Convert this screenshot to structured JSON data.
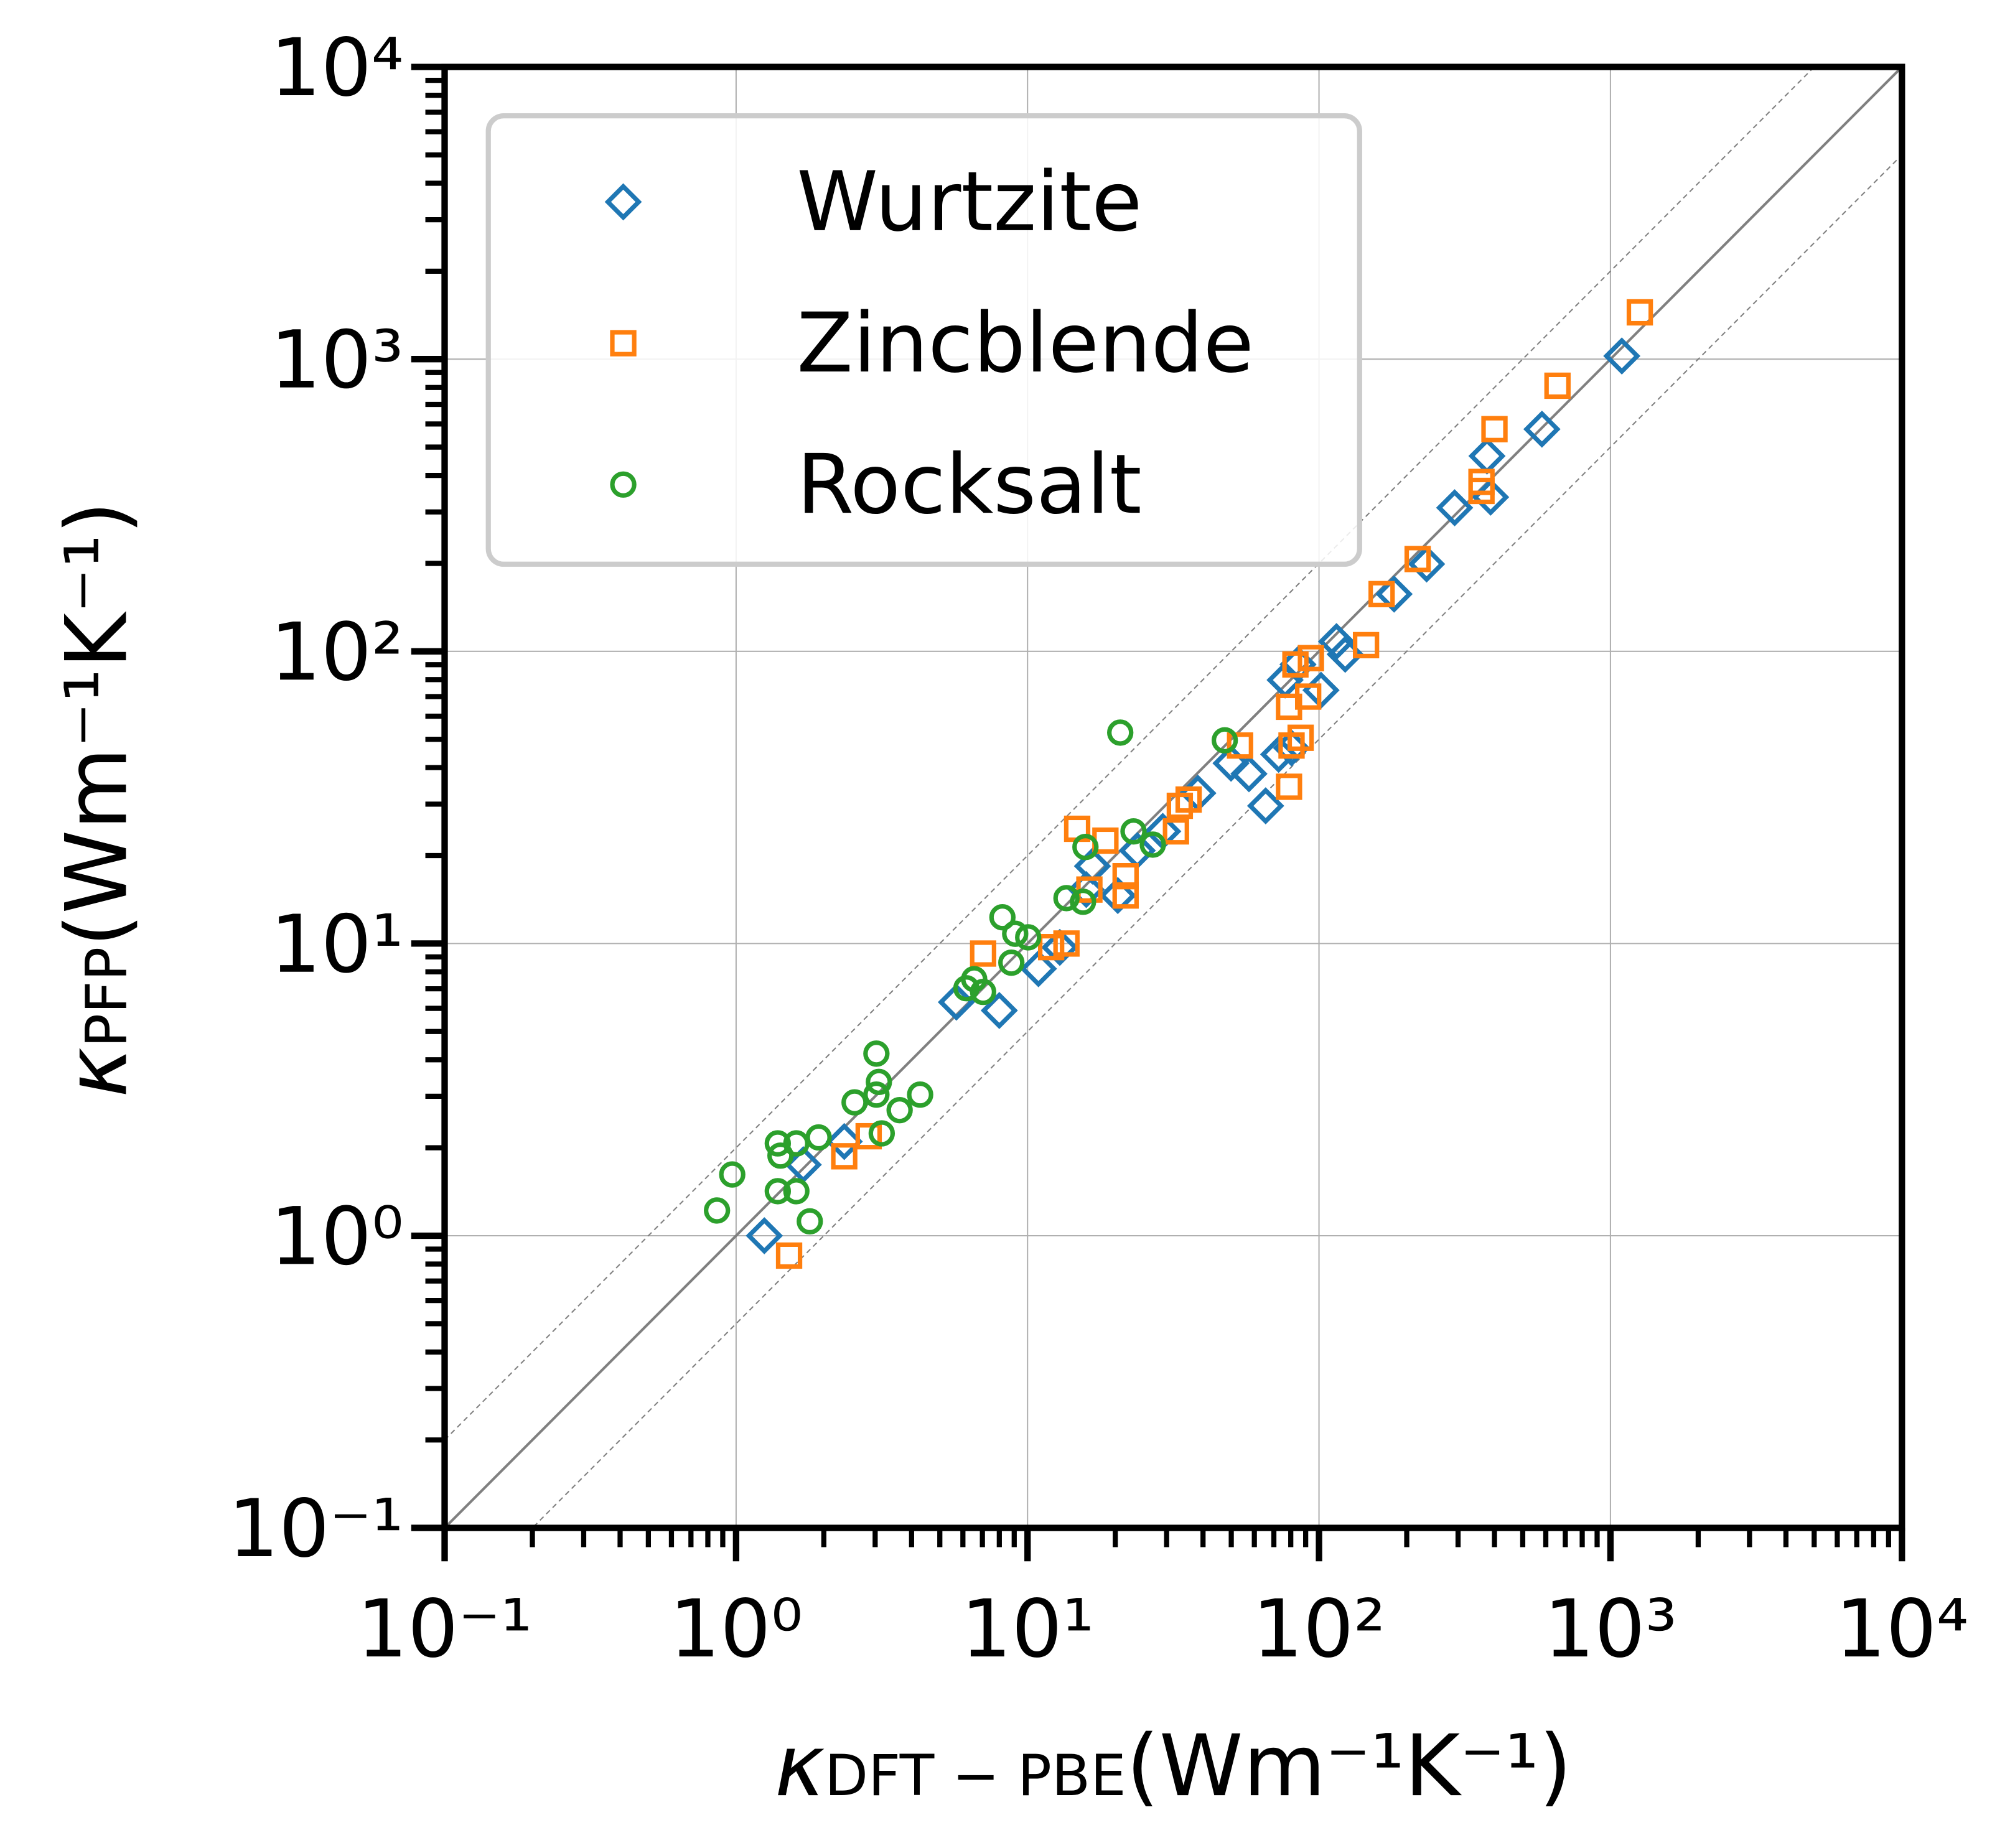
{
  "chart_data": {
    "type": "scatter",
    "xlabel": {
      "symbol": "κ",
      "subscript": "DFT − PBE",
      "unit": "(Wm⁻¹K⁻¹)"
    },
    "ylabel": {
      "symbol": "κ",
      "subscript": "PFP",
      "unit": "(Wm⁻¹K⁻¹)"
    },
    "xscale": "log",
    "yscale": "log",
    "xlim": [
      0.1,
      10000
    ],
    "ylim": [
      0.1,
      10000
    ],
    "xticks": [
      {
        "value": 0.1,
        "label": "10⁻¹"
      },
      {
        "value": 1,
        "label": "10⁰"
      },
      {
        "value": 10,
        "label": "10¹"
      },
      {
        "value": 100,
        "label": "10²"
      },
      {
        "value": 1000,
        "label": "10³"
      },
      {
        "value": 10000,
        "label": "10⁴"
      }
    ],
    "yticks": [
      {
        "value": 0.1,
        "label": "10⁻¹"
      },
      {
        "value": 1,
        "label": "10⁰"
      },
      {
        "value": 10,
        "label": "10¹"
      },
      {
        "value": 100,
        "label": "10²"
      },
      {
        "value": 1000,
        "label": "10³"
      },
      {
        "value": 10000,
        "label": "10⁴"
      }
    ],
    "grid": true,
    "legend": "upper left",
    "guide_factors": [
      1,
      2,
      0.5
    ],
    "series": [
      {
        "name": "Wurtzite",
        "color": "#1f77b4",
        "marker": "diamond",
        "x": [
          1.25,
          1.7,
          2.35,
          5.7,
          8.0,
          10.9,
          12.9,
          15.9,
          16.7,
          20.4,
          23.8,
          29.1,
          38.4,
          49.9,
          57.5,
          65.6,
          72.7,
          80.5,
          76.5,
          84.7,
          101.6,
          114.8,
          123,
          181,
          234,
          292,
          377,
          388,
          582,
          1094
        ],
        "values": [
          1.0,
          1.75,
          2.1,
          6.3,
          5.9,
          8.2,
          9.7,
          15.3,
          18.4,
          14.6,
          20.8,
          24.2,
          32.7,
          41.4,
          38.1,
          29.6,
          44.4,
          46.7,
          79.8,
          90.2,
          73.6,
          108,
          97.7,
          157,
          199,
          310,
          466,
          337,
          576,
          1025
        ]
      },
      {
        "name": "Zincblende",
        "color": "#ff7f0e",
        "marker": "square",
        "x": [
          1.52,
          2.35,
          2.85,
          7.04,
          12.05,
          13.6,
          14.8,
          16.3,
          18.5,
          21.7,
          21.7,
          32.3,
          33.3,
          35.7,
          53.6,
          78.9,
          78.9,
          80.5,
          86.5,
          83,
          91.8,
          93.8,
          145,
          164,
          218,
          361,
          361,
          400,
          658,
          1261
        ],
        "values": [
          0.855,
          1.87,
          2.19,
          9.24,
          9.72,
          10.0,
          24.7,
          15.3,
          22.5,
          17.0,
          14.6,
          24.2,
          29.6,
          31.1,
          47.6,
          34.4,
          64.6,
          47.6,
          50.6,
          90.2,
          70,
          94.8,
          105,
          157,
          207,
          380,
          354,
          576,
          811,
          1446
        ]
      },
      {
        "name": "Rocksalt",
        "color": "#2ca02c",
        "marker": "circle",
        "x": [
          0.86,
          0.97,
          1.39,
          1.39,
          1.42,
          1.61,
          1.61,
          1.79,
          1.92,
          2.55,
          3.03,
          3.09,
          3.03,
          3.16,
          3.64,
          4.28,
          6.17,
          6.56,
          7.04,
          8.2,
          8.8,
          9.07,
          10.05,
          13.6,
          15.5,
          15.8,
          20.8,
          23.1,
          26.9,
          47.5
        ],
        "values": [
          1.22,
          1.62,
          1.42,
          2.07,
          1.88,
          1.42,
          2.07,
          1.12,
          2.17,
          2.86,
          3.04,
          3.36,
          4.2,
          2.24,
          2.69,
          3.04,
          7.03,
          7.55,
          6.83,
          12.3,
          8.6,
          10.8,
          10.5,
          14.3,
          13.9,
          21.4,
          52.7,
          24.2,
          21.8,
          49.6
        ]
      }
    ]
  }
}
